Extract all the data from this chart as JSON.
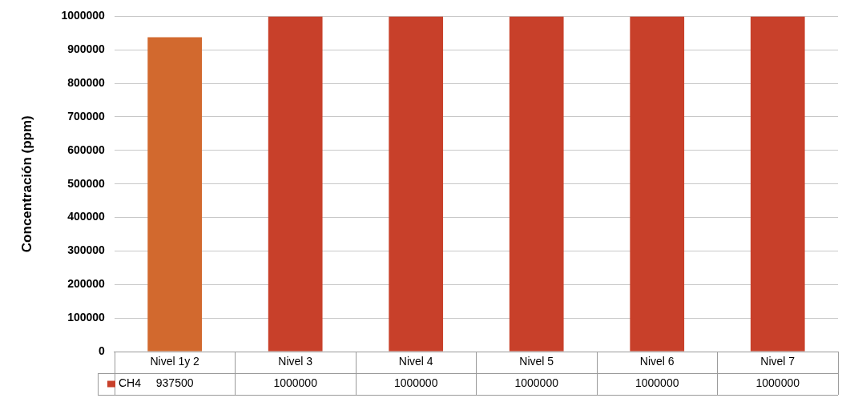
{
  "chart_data": {
    "type": "bar",
    "ylabel": "Concentración (ppm)",
    "categories": [
      "Nivel 1y 2",
      "Nivel 3",
      "Nivel 4",
      "Nivel 5",
      "Nivel 6",
      "Nivel 7"
    ],
    "series": [
      {
        "name": "CH4",
        "color": "#c8402a",
        "colors": [
          "#d2692e",
          "#c8402a",
          "#c8402a",
          "#c8402a",
          "#c8402a",
          "#c8402a"
        ],
        "values": [
          937500,
          1000000,
          1000000,
          1000000,
          1000000,
          1000000
        ]
      }
    ],
    "ylim": [
      0,
      1000000
    ],
    "yticks": [
      0,
      100000,
      200000,
      300000,
      400000,
      500000,
      600000,
      700000,
      800000,
      900000,
      1000000
    ],
    "grid": "y",
    "data_labels": true,
    "legend": "bottom"
  }
}
